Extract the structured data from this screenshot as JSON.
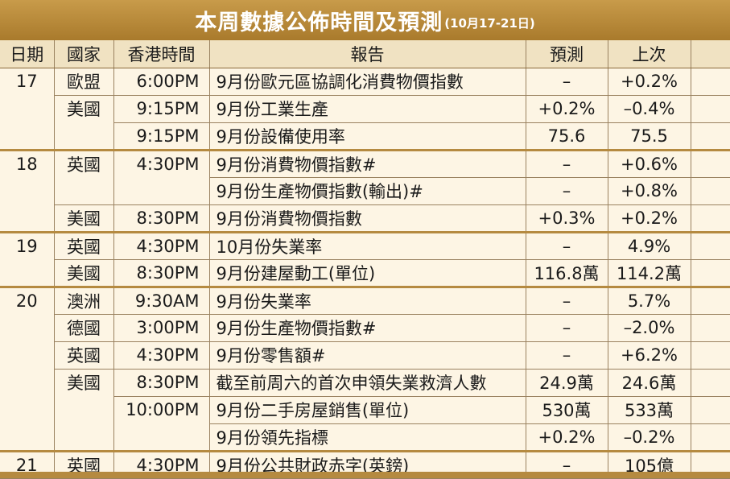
{
  "title": {
    "main": "本周數據公佈時間及預測",
    "sub": "(10月17-21日)"
  },
  "colors": {
    "title_bg": "#b0823a",
    "header_bg": "#f0e2c2",
    "page_bg": "#fdf5e4"
  },
  "table": {
    "headers": [
      "日期",
      "國家",
      "香港時間",
      "報告",
      "預測",
      "上次"
    ],
    "rows": [
      {
        "date": "17",
        "country": "歐盟",
        "time": "6:00PM",
        "report": "9月份歐元區協調化消費物價指數",
        "forecast": "–",
        "previous": "+0.2%"
      },
      {
        "date": "",
        "country": "美國",
        "time": "9:15PM",
        "report": "9月份工業生產",
        "forecast": "+0.2%",
        "previous": "–0.4%"
      },
      {
        "date": "",
        "country": "",
        "time": "9:15PM",
        "report": "9月份設備使用率",
        "forecast": "75.6",
        "previous": "75.5"
      },
      {
        "date": "18",
        "country": "英國",
        "time": "4:30PM",
        "report": "9月份消費物價指數#",
        "forecast": "–",
        "previous": "+0.6%"
      },
      {
        "date": "",
        "country": "",
        "time": "",
        "report": "9月份生產物價指數(輸出)#",
        "forecast": "–",
        "previous": "+0.8%"
      },
      {
        "date": "",
        "country": "美國",
        "time": "8:30PM",
        "report": "9月份消費物價指數",
        "forecast": "+0.3%",
        "previous": "+0.2%"
      },
      {
        "date": "19",
        "country": "英國",
        "time": "4:30PM",
        "report": "10月份失業率",
        "forecast": "–",
        "previous": "4.9%"
      },
      {
        "date": "",
        "country": "美國",
        "time": "8:30PM",
        "report": "9月份建屋動工(單位)",
        "forecast": "116.8萬",
        "previous": "114.2萬"
      },
      {
        "date": "20",
        "country": "澳洲",
        "time": "9:30AM",
        "report": "9月份失業率",
        "forecast": "–",
        "previous": "5.7%"
      },
      {
        "date": "",
        "country": "德國",
        "time": "3:00PM",
        "report": "9月份生產物價指數#",
        "forecast": "–",
        "previous": "–2.0%"
      },
      {
        "date": "",
        "country": "英國",
        "time": "4:30PM",
        "report": "9月份零售額#",
        "forecast": "–",
        "previous": "+6.2%"
      },
      {
        "date": "",
        "country": "美國",
        "time": "8:30PM",
        "report": "截至前周六的首次申領失業救濟人數",
        "forecast": "24.9萬",
        "previous": "24.6萬"
      },
      {
        "date": "",
        "country": "",
        "time": "10:00PM",
        "report": "9月份二手房屋銷售(單位)",
        "forecast": "530萬",
        "previous": "533萬"
      },
      {
        "date": "",
        "country": "",
        "time": "",
        "report": "9月份領先指標",
        "forecast": "+0.2%",
        "previous": "–0.2%"
      },
      {
        "date": "21",
        "country": "英國",
        "time": "4:30PM",
        "report": "9月份公共財政赤字(英鎊)",
        "forecast": "–",
        "previous": "105億"
      }
    ]
  }
}
